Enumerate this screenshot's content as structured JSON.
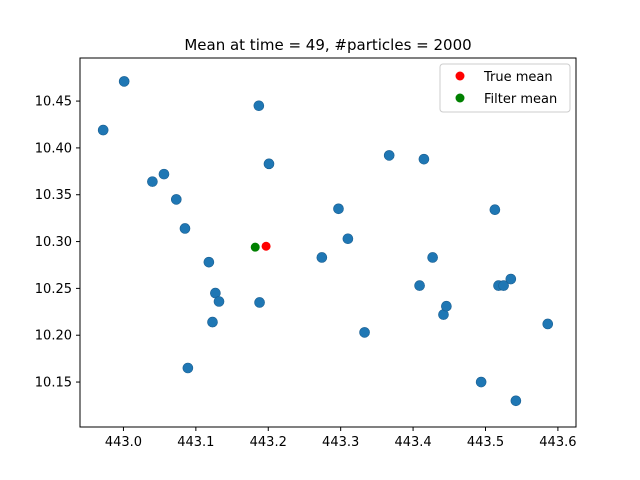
{
  "chart_data": {
    "type": "scatter",
    "title": "Mean at time = 49, #particles = 2000",
    "xlabel": "",
    "ylabel": "",
    "xlim": [
      442.94,
      443.625
    ],
    "ylim": [
      10.102,
      10.496
    ],
    "xticks": [
      443.0,
      443.1,
      443.2,
      443.3,
      443.4,
      443.5,
      443.6
    ],
    "xtick_labels": [
      "443.0",
      "443.1",
      "443.2",
      "443.3",
      "443.4",
      "443.5",
      "443.6"
    ],
    "yticks": [
      10.15,
      10.2,
      10.25,
      10.3,
      10.35,
      10.4,
      10.45
    ],
    "ytick_labels": [
      "10.15",
      "10.20",
      "10.25",
      "10.30",
      "10.35",
      "10.40",
      "10.45"
    ],
    "grid": false,
    "legend_position": "top-right",
    "series": [
      {
        "role": "particles",
        "color": "#1f77b4",
        "points": [
          [
            442.972,
            10.419
          ],
          [
            443.001,
            10.471
          ],
          [
            443.04,
            10.364
          ],
          [
            443.056,
            10.372
          ],
          [
            443.073,
            10.345
          ],
          [
            443.085,
            10.314
          ],
          [
            443.089,
            10.165
          ],
          [
            443.118,
            10.278
          ],
          [
            443.123,
            10.214
          ],
          [
            443.127,
            10.245
          ],
          [
            443.132,
            10.236
          ],
          [
            443.187,
            10.445
          ],
          [
            443.188,
            10.235
          ],
          [
            443.201,
            10.383
          ],
          [
            443.274,
            10.283
          ],
          [
            443.297,
            10.335
          ],
          [
            443.31,
            10.303
          ],
          [
            443.333,
            10.203
          ],
          [
            443.367,
            10.392
          ],
          [
            443.409,
            10.253
          ],
          [
            443.415,
            10.388
          ],
          [
            443.427,
            10.283
          ],
          [
            443.442,
            10.222
          ],
          [
            443.446,
            10.231
          ],
          [
            443.494,
            10.15
          ],
          [
            443.513,
            10.334
          ],
          [
            443.518,
            10.253
          ],
          [
            443.525,
            10.253
          ],
          [
            443.535,
            10.26
          ],
          [
            443.542,
            10.13
          ],
          [
            443.586,
            10.212
          ]
        ]
      },
      {
        "name": "True mean",
        "color": "#ff0000",
        "points": [
          [
            443.197,
            10.295
          ]
        ]
      },
      {
        "name": "Filter mean",
        "color": "#008000",
        "points": [
          [
            443.182,
            10.294
          ]
        ]
      }
    ]
  }
}
